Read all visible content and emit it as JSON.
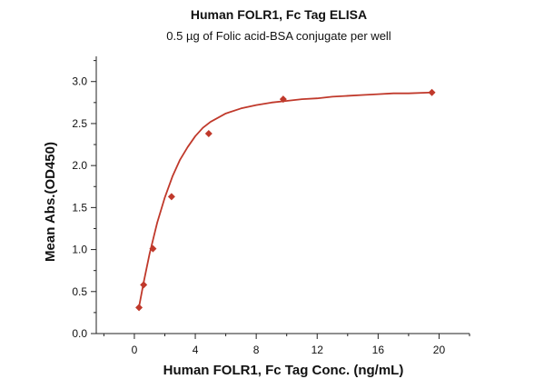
{
  "chart_data": {
    "type": "scatter",
    "title": "Human FOLR1, Fc Tag ELISA",
    "subtitle": "0.5 µg of Folic acid-BSA conjugate per well",
    "xlabel": "Human FOLR1, Fc Tag Conc. (ng/mL)",
    "ylabel": "Mean Abs.(OD450)",
    "xlim": [
      -2.5,
      22
    ],
    "ylim": [
      0,
      3.3
    ],
    "x_ticks": [
      0,
      4,
      8,
      12,
      16,
      20
    ],
    "y_ticks": [
      0.0,
      0.5,
      1.0,
      1.5,
      2.0,
      2.5,
      3.0
    ],
    "x_tick_labels": [
      "0",
      "4",
      "8",
      "12",
      "16",
      "20"
    ],
    "y_tick_labels": [
      "0.0",
      "0.5",
      "1.0",
      "1.5",
      "2.0",
      "2.5",
      "3.0"
    ],
    "grid": false,
    "legend": "none",
    "series": [
      {
        "marker": "diamond",
        "color": "#c0392b",
        "x": [
          0.305,
          0.61,
          1.22,
          2.44,
          4.88,
          9.77,
          19.53
        ],
        "y": [
          0.31,
          0.58,
          1.01,
          1.63,
          2.38,
          2.79,
          2.87
        ]
      }
    ],
    "fit_curve": {
      "color": "#c0392b",
      "x": [
        0.3,
        0.6,
        1.0,
        1.5,
        2.0,
        2.5,
        3.0,
        3.5,
        4.0,
        4.5,
        5.0,
        6.0,
        7.0,
        8.0,
        9.0,
        10.0,
        11.0,
        12.0,
        13.0,
        14.0,
        15.0,
        16.0,
        17.0,
        18.0,
        19.53
      ],
      "y": [
        0.31,
        0.6,
        0.95,
        1.32,
        1.62,
        1.87,
        2.07,
        2.22,
        2.35,
        2.45,
        2.52,
        2.62,
        2.68,
        2.72,
        2.75,
        2.77,
        2.79,
        2.8,
        2.82,
        2.83,
        2.84,
        2.85,
        2.86,
        2.86,
        2.87
      ]
    }
  }
}
